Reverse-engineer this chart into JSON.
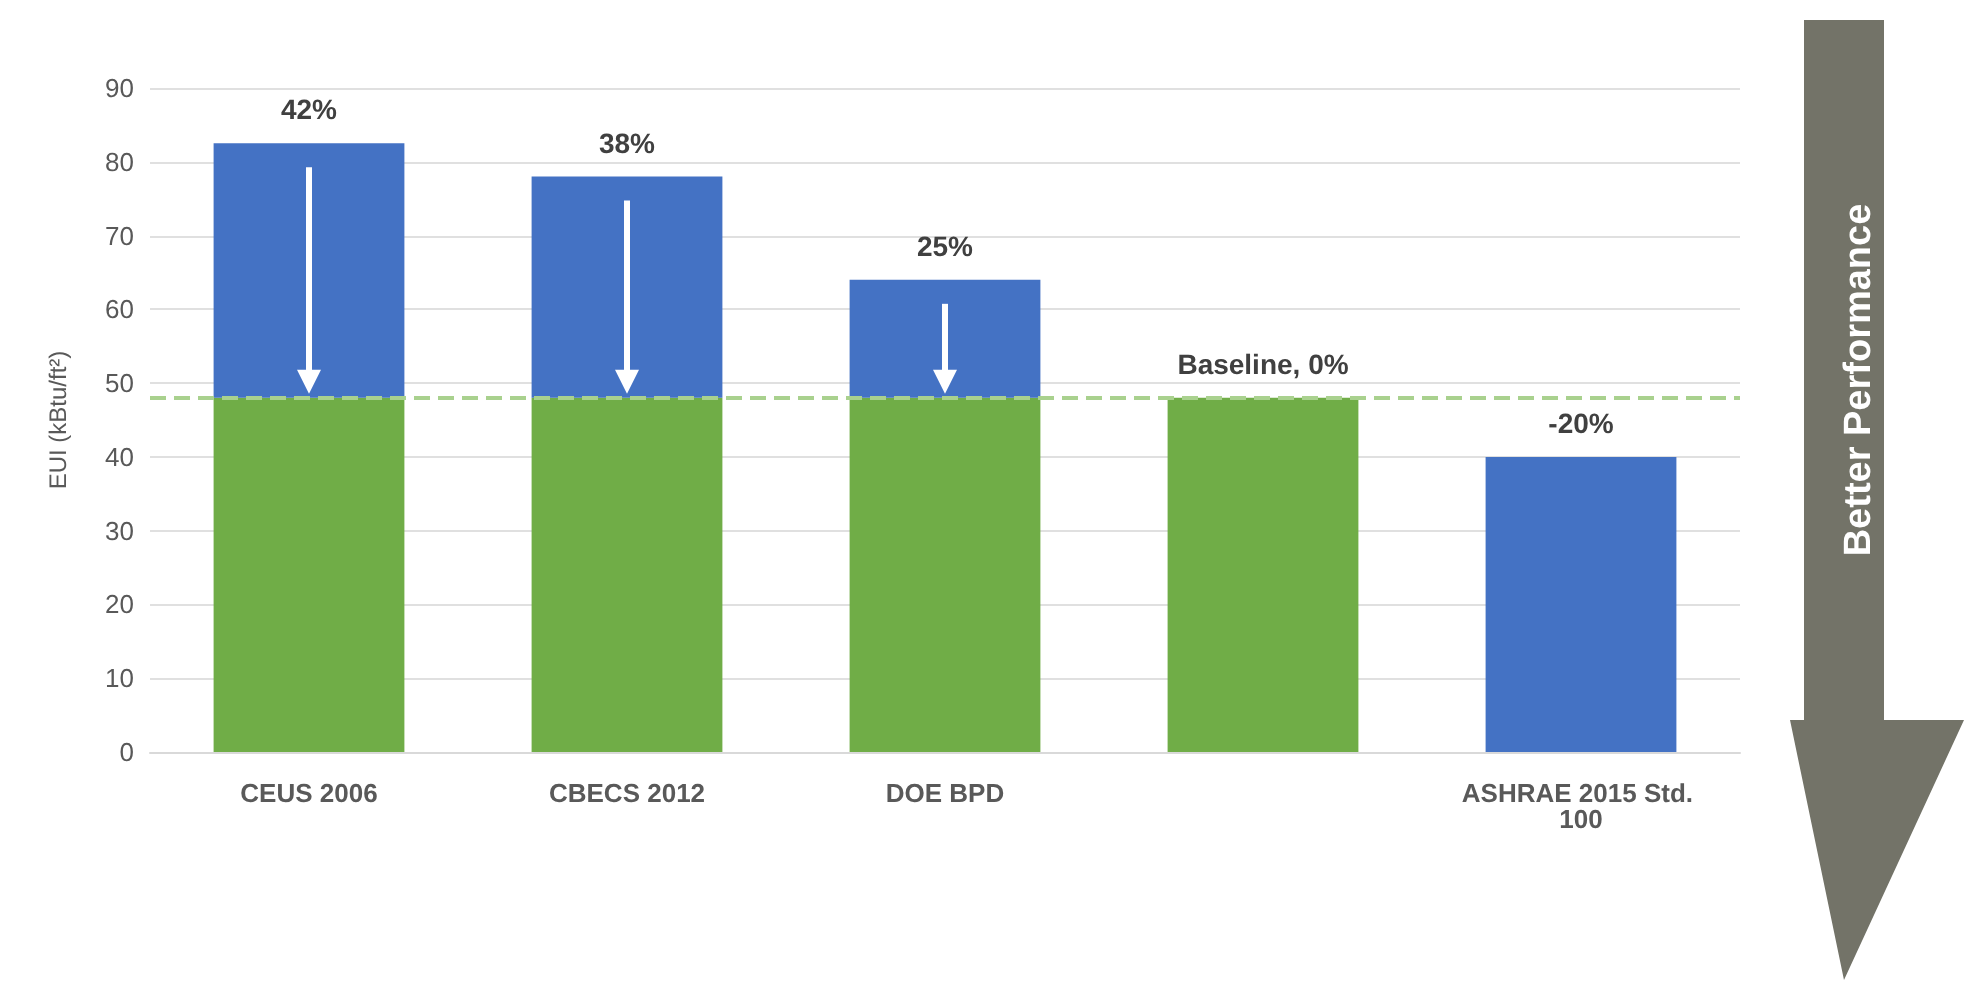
{
  "chart_data": {
    "type": "bar",
    "stacked": true,
    "ylabel": "EUI (kBtu/ft²)",
    "categories": [
      "CEUS 2006",
      "CBECS 2012",
      "DOE BPD",
      null,
      "ASHRAE 2015 Std. 100"
    ],
    "series": [
      {
        "color": "#70ad47",
        "values": [
          48,
          48,
          48,
          48,
          null
        ]
      },
      {
        "color": "#4472c4",
        "values": [
          34.5,
          30,
          16,
          null,
          40
        ]
      }
    ],
    "ylim": [
      0,
      90
    ],
    "yticks": [
      0,
      10,
      20,
      30,
      40,
      50,
      60,
      70,
      80,
      90
    ],
    "grid": "y",
    "ref_lines": [
      {
        "axis": "y",
        "value": 48,
        "color": "#a9d18e",
        "line_style": "dashed"
      }
    ],
    "annotations": [
      {
        "text": "42%",
        "x": "CEUS 2006",
        "y": 82.5
      },
      {
        "text": "38%",
        "x": "CBECS 2012",
        "y": 78
      },
      {
        "text": "25%",
        "x": "DOE BPD",
        "y": 64
      },
      {
        "text": "Baseline, 0%",
        "y": 48
      },
      {
        "text": "-20%",
        "x": "ASHRAE 2015 Std. 100",
        "y": 40
      },
      "Better Performance"
    ]
  }
}
